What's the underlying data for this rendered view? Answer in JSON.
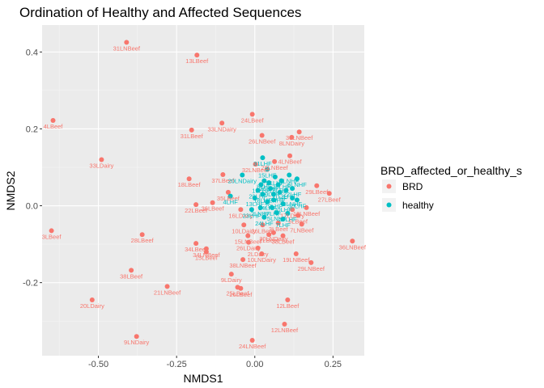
{
  "chart_data": {
    "type": "scatter",
    "title": "Ordination of Healthy and Affected Sequences",
    "xlabel": "NMDS1",
    "ylabel": "NMDS2",
    "xlim": [
      -0.68,
      0.35
    ],
    "ylim": [
      -0.39,
      0.47
    ],
    "x_ticks": [
      -0.5,
      -0.25,
      0.0,
      0.25
    ],
    "x_tick_labels": [
      "-0.50",
      "-0.25",
      "0.00",
      "0.25"
    ],
    "y_ticks": [
      0.4,
      0.2,
      0.0,
      -0.2
    ],
    "y_tick_labels": [
      "0.4",
      "0.2",
      "0.0",
      "-0.2"
    ],
    "grid": true,
    "legend": {
      "title": "BRD_affected_or_healthy_s",
      "position": "right",
      "entries": [
        {
          "label": "BRD",
          "color": "#F8766D"
        },
        {
          "label": "healthy",
          "color": "#00BFC4"
        }
      ]
    },
    "colors": {
      "BRD": "#F8766D",
      "healthy": "#00BFC4",
      "panel": "#EBEBEB",
      "grid": "#FFFFFF"
    },
    "series": [
      {
        "name": "BRD",
        "points": [
          {
            "x": -0.41,
            "y": 0.425,
            "label": "31LNBeef"
          },
          {
            "x": -0.185,
            "y": 0.392,
            "label": "13LBeef"
          },
          {
            "x": -0.008,
            "y": 0.238,
            "label": "24LBeef"
          },
          {
            "x": -0.645,
            "y": 0.222,
            "label": "4LBeef"
          },
          {
            "x": -0.202,
            "y": 0.197,
            "label": "31LBeef"
          },
          {
            "x": -0.105,
            "y": 0.215,
            "label": "33LNDairy"
          },
          {
            "x": 0.023,
            "y": 0.183,
            "label": "26LNBeef"
          },
          {
            "x": 0.142,
            "y": 0.192,
            "label": "30LNBeef"
          },
          {
            "x": 0.118,
            "y": 0.178,
            "label": "8LNDairy"
          },
          {
            "x": -0.49,
            "y": 0.12,
            "label": "33LDairy"
          },
          {
            "x": 0.112,
            "y": 0.13,
            "label": "4LNBeef"
          },
          {
            "x": 0.063,
            "y": 0.115,
            "label": "28LNBeef"
          },
          {
            "x": -0.102,
            "y": 0.081,
            "label": "37LBeef"
          },
          {
            "x": 0.002,
            "y": 0.108,
            "label": "32LNBeef"
          },
          {
            "x": -0.21,
            "y": 0.07,
            "label": "18LBeef"
          },
          {
            "x": -0.085,
            "y": 0.035,
            "label": "35LBeef"
          },
          {
            "x": 0.198,
            "y": 0.052,
            "label": "29LBeef"
          },
          {
            "x": 0.238,
            "y": 0.032,
            "label": "27LBeef"
          },
          {
            "x": -0.188,
            "y": 0.003,
            "label": "22LBeef"
          },
          {
            "x": -0.135,
            "y": 0.008,
            "label": "36LBeef"
          },
          {
            "x": -0.045,
            "y": -0.01,
            "label": "16LDairy"
          },
          {
            "x": 0.12,
            "y": -0.01,
            "label": "17LDairy"
          },
          {
            "x": 0.138,
            "y": -0.025,
            "label": "6LBeef"
          },
          {
            "x": -0.035,
            "y": -0.05,
            "label": "10LDairy"
          },
          {
            "x": 0.075,
            "y": -0.045,
            "label": "3LBeef"
          },
          {
            "x": 0.15,
            "y": -0.048,
            "label": "7LNBeef"
          },
          {
            "x": -0.65,
            "y": -0.065,
            "label": "3LBeef"
          },
          {
            "x": -0.36,
            "y": -0.075,
            "label": "28LBeef"
          },
          {
            "x": -0.022,
            "y": -0.078,
            "label": "15LNBeef"
          },
          {
            "x": 0.045,
            "y": -0.075,
            "label": "2LBeef"
          },
          {
            "x": 0.09,
            "y": -0.078,
            "label": "38LBeef"
          },
          {
            "x": 0.312,
            "y": -0.092,
            "label": "36LNBeef"
          },
          {
            "x": -0.188,
            "y": -0.098,
            "label": "34LBeef"
          },
          {
            "x": -0.155,
            "y": -0.112,
            "label": "34LNBeef"
          },
          {
            "x": -0.155,
            "y": -0.12,
            "label": "15LBeef"
          },
          {
            "x": 0.022,
            "y": -0.125,
            "label": "10LNDairy"
          },
          {
            "x": 0.132,
            "y": -0.125,
            "label": "19LNBeef"
          },
          {
            "x": 0.18,
            "y": -0.148,
            "label": "29LNBeef"
          },
          {
            "x": -0.038,
            "y": -0.14,
            "label": "38LNBeef"
          },
          {
            "x": -0.395,
            "y": -0.168,
            "label": "38LBeef"
          },
          {
            "x": -0.075,
            "y": -0.178,
            "label": "9LDairy"
          },
          {
            "x": -0.28,
            "y": -0.21,
            "label": "21LNBeef"
          },
          {
            "x": -0.055,
            "y": -0.212,
            "label": "25LBeef"
          },
          {
            "x": -0.045,
            "y": -0.215,
            "label": "26LBeef"
          },
          {
            "x": -0.52,
            "y": -0.245,
            "label": "20LDairy"
          },
          {
            "x": 0.105,
            "y": -0.245,
            "label": "12LBeef"
          },
          {
            "x": 0.095,
            "y": -0.308,
            "label": "12LNBeef"
          },
          {
            "x": -0.378,
            "y": -0.34,
            "label": "9LNDairy"
          },
          {
            "x": -0.008,
            "y": -0.35,
            "label": "24LNBeef"
          },
          {
            "x": 0.025,
            "y": -0.05,
            "label": "26LBeef"
          },
          {
            "x": 0.06,
            "y": -0.07,
            "label": "30LNDairy"
          },
          {
            "x": -0.02,
            "y": -0.095,
            "label": "26LDairy"
          },
          {
            "x": 0.01,
            "y": -0.11,
            "label": "2LDairy"
          },
          {
            "x": 0.165,
            "y": -0.005,
            "label": "12LNBeef"
          }
        ]
      },
      {
        "name": "healthy",
        "points": [
          {
            "x": 0.04,
            "y": 0.095,
            "label": "15LHF"
          },
          {
            "x": -0.04,
            "y": 0.08,
            "label": "20LNDairy"
          },
          {
            "x": 0.02,
            "y": 0.055,
            "label": "19LHF"
          },
          {
            "x": 0.11,
            "y": 0.08,
            "label": "9LNHF"
          },
          {
            "x": 0.135,
            "y": 0.07,
            "label": "6LNHF"
          },
          {
            "x": -0.078,
            "y": 0.025,
            "label": "4LHF"
          },
          {
            "x": 0.08,
            "y": 0.035,
            "label": "1LHF"
          },
          {
            "x": 0.06,
            "y": 0.03,
            "label": "11LNHF"
          },
          {
            "x": 0.12,
            "y": 0.02,
            "label": "3LNHF"
          },
          {
            "x": 0.018,
            "y": -0.005,
            "label": "2LNHF"
          },
          {
            "x": 0.07,
            "y": -0.018,
            "label": "5LNHF"
          },
          {
            "x": 0.09,
            "y": -0.035,
            "label": "7LHF"
          },
          {
            "x": 0.03,
            "y": 0.065,
            "label": "8LHF"
          },
          {
            "x": 0.05,
            "y": 0.045,
            "label": "10LHF"
          },
          {
            "x": 0.1,
            "y": 0.04,
            "label": "12LHF"
          },
          {
            "x": 0.0,
            "y": 0.02,
            "label": "13LHF"
          },
          {
            "x": 0.04,
            "y": 0.01,
            "label": "14LHF"
          },
          {
            "x": 0.075,
            "y": 0.055,
            "label": "16LHF"
          },
          {
            "x": 0.055,
            "y": -0.005,
            "label": "17LHF"
          },
          {
            "x": 0.025,
            "y": 0.03,
            "label": "18LHF"
          },
          {
            "x": 0.09,
            "y": 0.005,
            "label": "20LHF"
          },
          {
            "x": 0.065,
            "y": 0.075,
            "label": "21LHF"
          },
          {
            "x": 0.12,
            "y": 0.045,
            "label": "22LHF"
          },
          {
            "x": -0.01,
            "y": -0.01,
            "label": "23LHF"
          },
          {
            "x": 0.03,
            "y": -0.03,
            "label": "24LHF"
          },
          {
            "x": 0.085,
            "y": 0.065,
            "label": "25LHF"
          },
          {
            "x": 0.045,
            "y": 0.06,
            "label": "26LHF"
          },
          {
            "x": 0.105,
            "y": -0.02,
            "label": "27LHF"
          },
          {
            "x": 0.01,
            "y": 0.04,
            "label": "28LHF"
          },
          {
            "x": 0.06,
            "y": 0.015,
            "label": "29LHF"
          },
          {
            "x": 0.135,
            "y": 0.015,
            "label": "30LHF"
          },
          {
            "x": 0.025,
            "y": 0.125,
            "label": "31LHF"
          }
        ]
      }
    ]
  }
}
